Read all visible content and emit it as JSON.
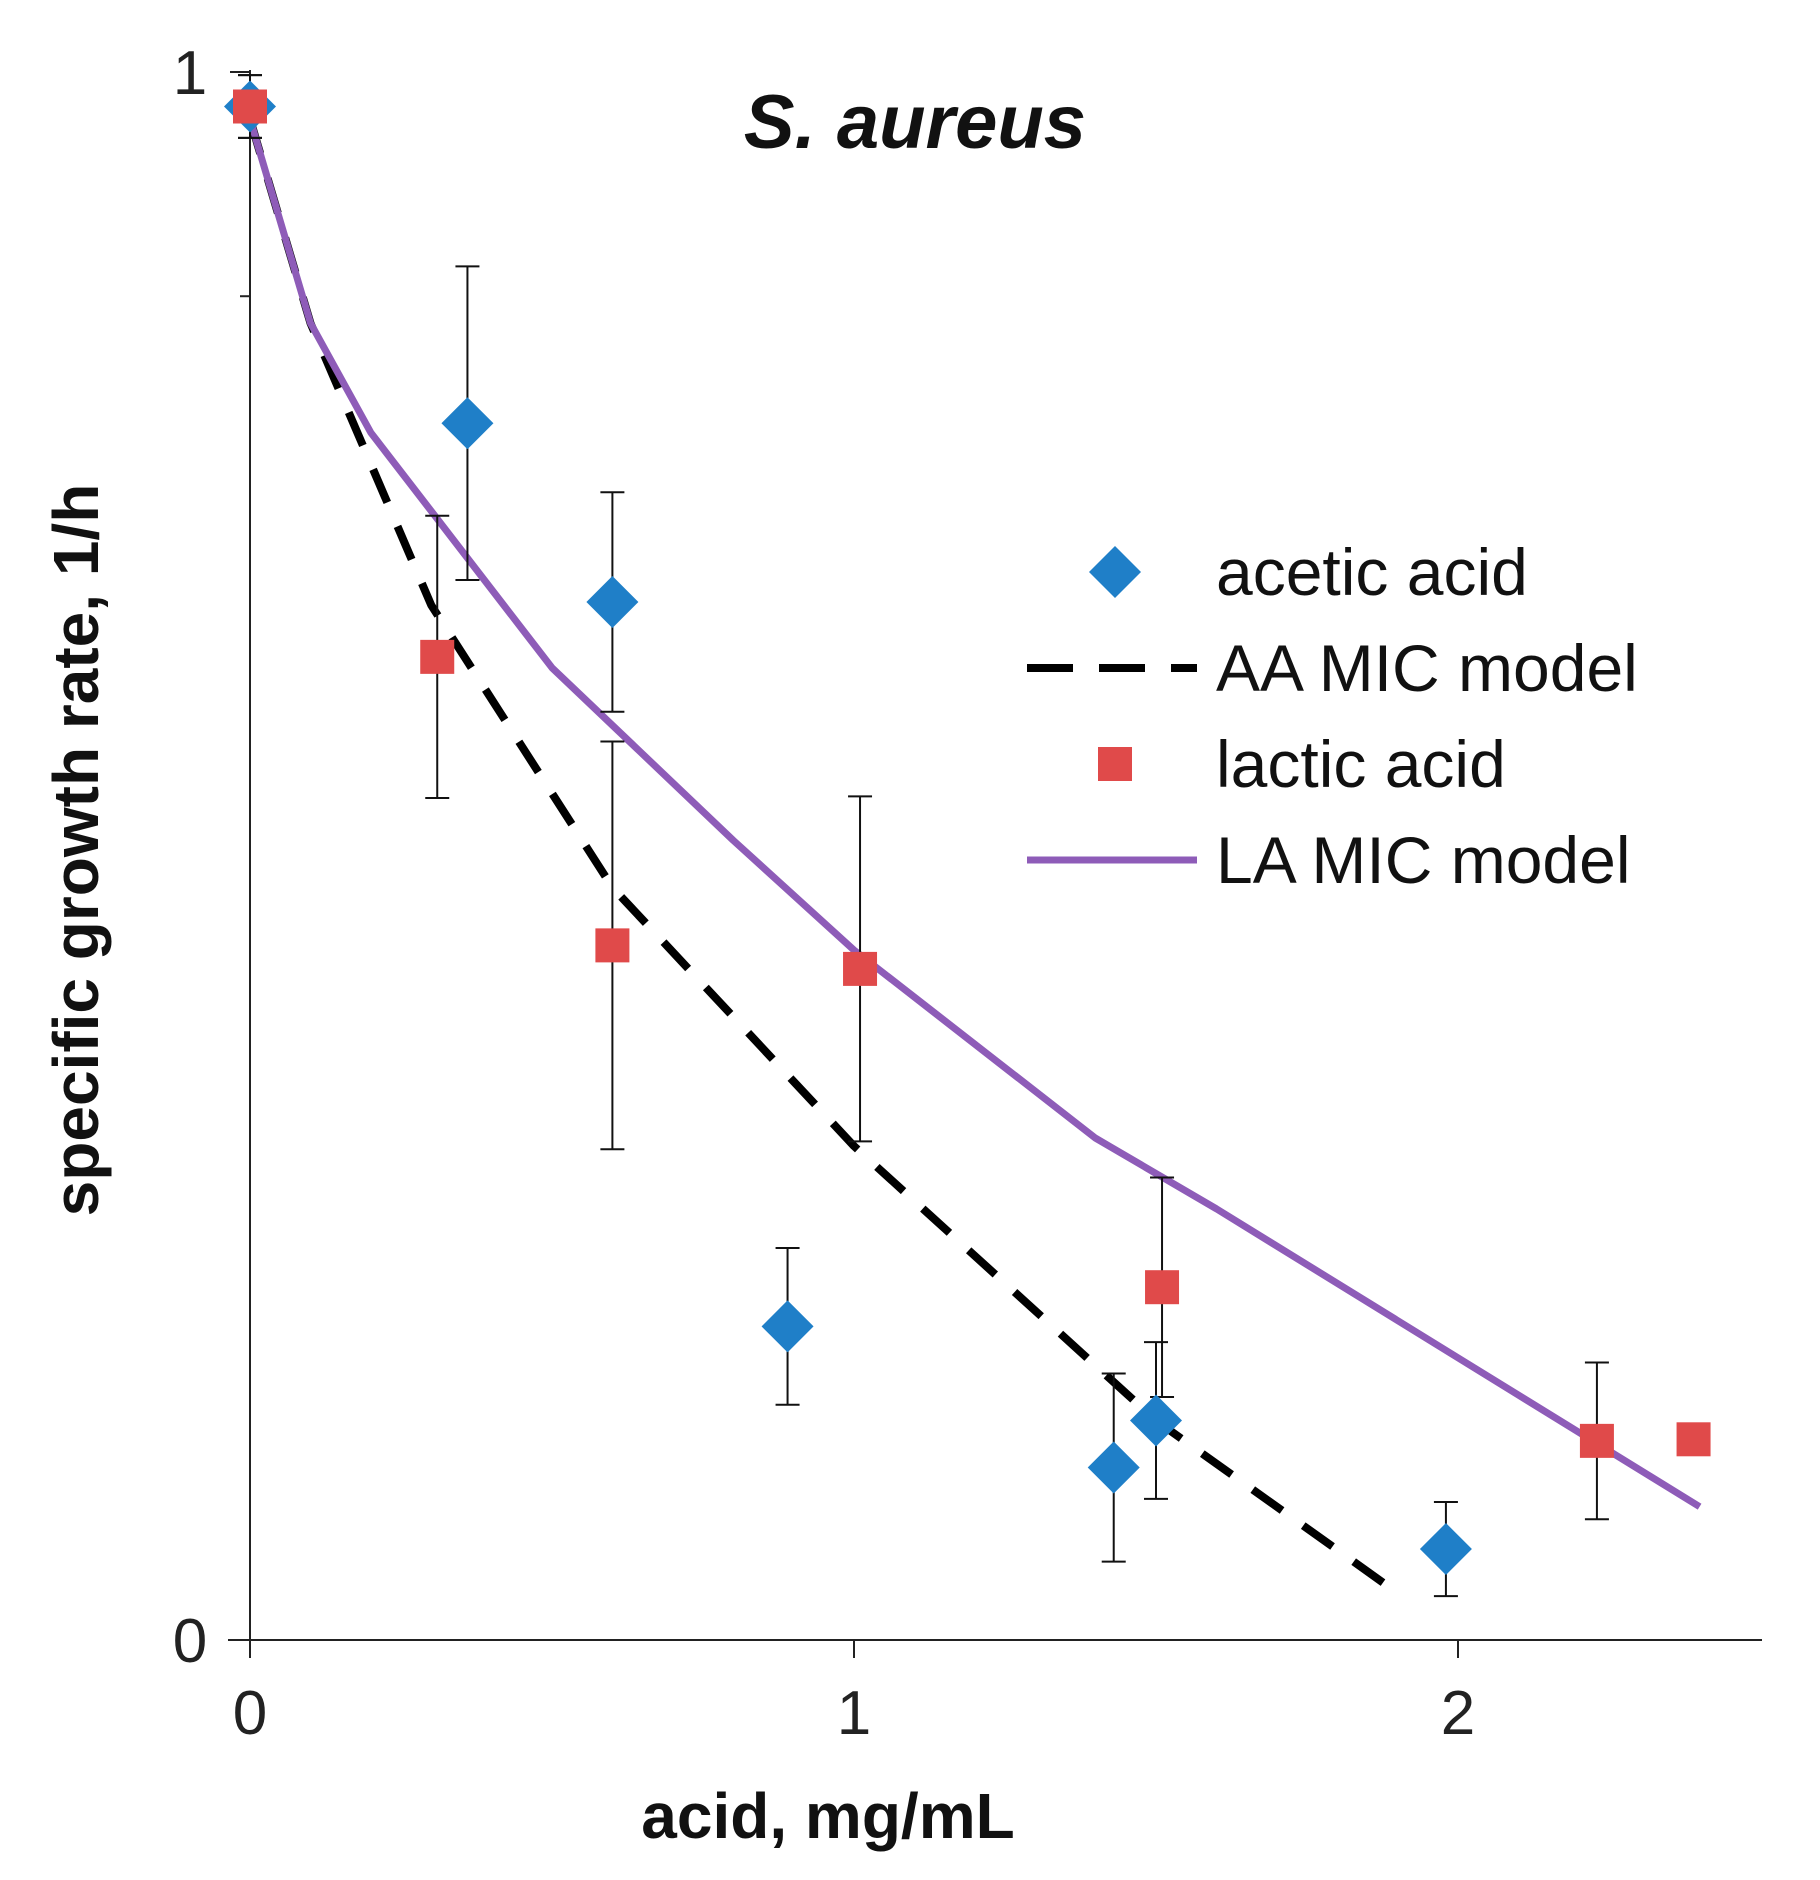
{
  "chart_data": {
    "type": "scatter",
    "title": "S. aureus",
    "xlabel": "acid, mg/mL",
    "ylabel": "specific growth rate, 1/h",
    "xlim": [
      0,
      2.5
    ],
    "ylim": [
      0,
      1
    ],
    "x_ticks": [
      0,
      1,
      2
    ],
    "y_ticks": [
      0,
      1
    ],
    "x_tick_labels": [
      "0",
      "1",
      "2"
    ],
    "y_tick_labels": [
      "0",
      "1"
    ],
    "y_minor_ticks": [
      0.857
    ],
    "grid": false,
    "legend_position": "right",
    "series": [
      {
        "name": "acetic acid",
        "kind": "points",
        "marker": "diamond",
        "color": "#1f7fc8",
        "points": [
          {
            "x": 0.0,
            "y": 0.978,
            "err": 0.02
          },
          {
            "x": 0.36,
            "y": 0.776,
            "err": 0.1
          },
          {
            "x": 0.6,
            "y": 0.662,
            "err": 0.07
          },
          {
            "x": 0.89,
            "y": 0.2,
            "err": 0.05
          },
          {
            "x": 1.43,
            "y": 0.11,
            "err": 0.06
          },
          {
            "x": 1.5,
            "y": 0.14,
            "err": 0.05
          },
          {
            "x": 1.98,
            "y": 0.058,
            "err": 0.03
          }
        ]
      },
      {
        "name": "AA MIC model",
        "kind": "line",
        "style": "dashed",
        "color": "#000000",
        "points": [
          {
            "x": 0.0,
            "y": 0.97
          },
          {
            "x": 0.1,
            "y": 0.84
          },
          {
            "x": 0.3,
            "y": 0.66
          },
          {
            "x": 0.6,
            "y": 0.48
          },
          {
            "x": 1.0,
            "y": 0.315
          },
          {
            "x": 1.5,
            "y": 0.14
          },
          {
            "x": 1.9,
            "y": 0.03
          }
        ]
      },
      {
        "name": "lactic acid",
        "kind": "points",
        "marker": "square",
        "color": "#e04a4a",
        "points": [
          {
            "x": 0.0,
            "y": 0.978,
            "err": 0.02
          },
          {
            "x": 0.31,
            "y": 0.627,
            "err": 0.09
          },
          {
            "x": 0.6,
            "y": 0.443,
            "err": 0.13
          },
          {
            "x": 1.01,
            "y": 0.428,
            "err": 0.11
          },
          {
            "x": 1.51,
            "y": 0.225,
            "err": 0.07
          },
          {
            "x": 2.23,
            "y": 0.127,
            "err": 0.05
          },
          {
            "x": 2.39,
            "y": 0.128,
            "err": 0
          }
        ]
      },
      {
        "name": "LA MIC model",
        "kind": "line",
        "style": "solid",
        "color": "#8e5cb8",
        "points": [
          {
            "x": 0.0,
            "y": 0.97
          },
          {
            "x": 0.1,
            "y": 0.84
          },
          {
            "x": 0.2,
            "y": 0.77
          },
          {
            "x": 0.5,
            "y": 0.62
          },
          {
            "x": 0.8,
            "y": 0.51
          },
          {
            "x": 1.0,
            "y": 0.44
          },
          {
            "x": 1.4,
            "y": 0.32
          },
          {
            "x": 1.6,
            "y": 0.275
          },
          {
            "x": 2.0,
            "y": 0.18
          },
          {
            "x": 2.4,
            "y": 0.085
          }
        ]
      }
    ]
  }
}
